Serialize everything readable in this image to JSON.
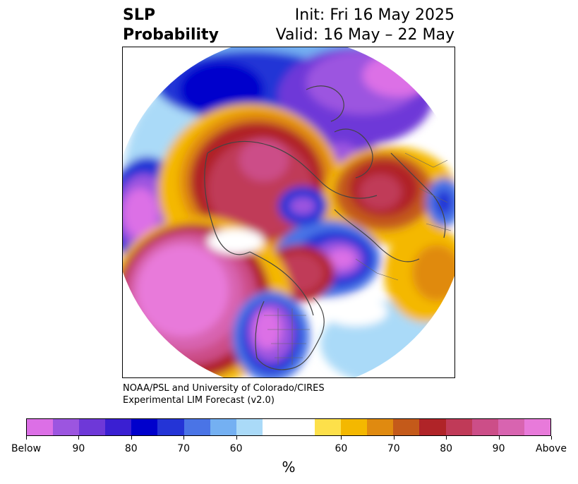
{
  "title": {
    "left_line1": "SLP",
    "left_line2": "Probability",
    "right_line1": "Init: Fri 16 May 2025",
    "right_line2": "Valid: 16 May – 22 May"
  },
  "credit": {
    "line1": "NOAA/PSL and University of Colorado/CIRES",
    "line2": "Experimental LIM Forecast (v2.0)"
  },
  "colorbar": {
    "colors": [
      "#dc6fe6",
      "#9c55e0",
      "#6e38d8",
      "#3a1fd2",
      "#0000cc",
      "#2434d6",
      "#4a74e6",
      "#74b0f2",
      "#aadaf8",
      "#ffffff",
      "#ffffff",
      "#fde04a",
      "#f4b800",
      "#e08a10",
      "#c45a1a",
      "#b02428",
      "#c03a58",
      "#cc4e88",
      "#d864b0",
      "#e87ada"
    ],
    "tick_labels": [
      "Below",
      "90",
      "80",
      "70",
      "60",
      "60",
      "70",
      "80",
      "90",
      "Above"
    ],
    "unit": "%"
  },
  "map": {
    "projection": "north-polar-stereographic",
    "palette": {
      "below_strong": "#dc6fe6",
      "below_90": "#9c55e0",
      "below_80": "#3a1fd2",
      "below_70": "#2434d6",
      "below_60": "#74b0f2",
      "below_light": "#aadaf8",
      "above_light": "#fde04a",
      "above_60": "#f4b800",
      "above_70": "#e08a10",
      "above_80": "#b02428",
      "above_90": "#c03a58",
      "above_strong": "#e87ada"
    }
  }
}
